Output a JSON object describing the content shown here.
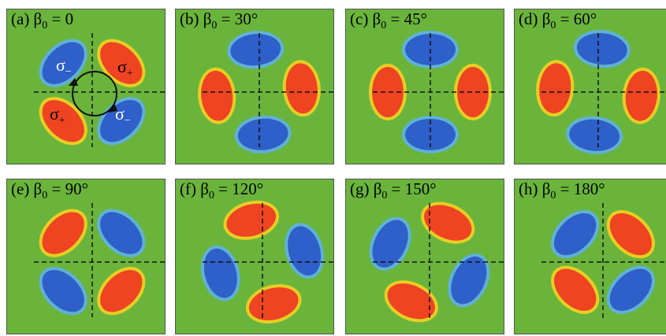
{
  "panels": [
    {
      "label": "(a) β",
      "sub": "0",
      "value": " = 0"
    },
    {
      "label": "(b) β",
      "sub": "0",
      "value": " = 30°"
    },
    {
      "label": "(c) β",
      "sub": "0",
      "value": " = 45°"
    },
    {
      "label": "(d) β",
      "sub": "0",
      "value": " = 60°"
    },
    {
      "label": "(e) β",
      "sub": "0",
      "value": " = 90°"
    },
    {
      "label": "(f) β",
      "sub": "0",
      "value": " = 120°"
    },
    {
      "label": "(g) β",
      "sub": "0",
      "value": " = 150°"
    },
    {
      "label": "(h) β",
      "sub": "0",
      "value": " = 180°"
    }
  ],
  "annotations": {
    "sigma": "σ",
    "minus": "−",
    "plus": "+"
  },
  "colors": {
    "background": "#6ab43c",
    "blue_lobe": "#2f5fc8",
    "red_lobe": "#ee4422"
  }
}
